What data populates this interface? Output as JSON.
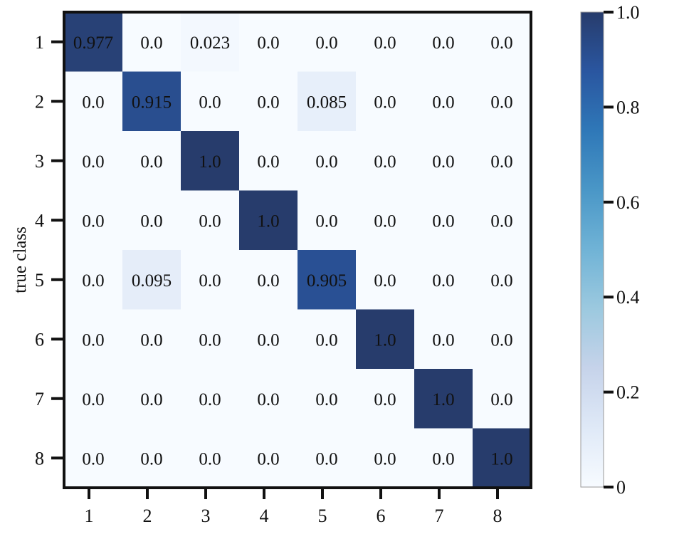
{
  "chart_data": {
    "type": "heatmap",
    "title": "",
    "xlabel": "",
    "ylabel": "true class",
    "x_categories": [
      "1",
      "2",
      "3",
      "4",
      "5",
      "6",
      "7",
      "8"
    ],
    "y_categories": [
      "1",
      "2",
      "3",
      "4",
      "5",
      "6",
      "7",
      "8"
    ],
    "values": [
      [
        0.977,
        0.0,
        0.023,
        0.0,
        0.0,
        0.0,
        0.0,
        0.0
      ],
      [
        0.0,
        0.915,
        0.0,
        0.0,
        0.085,
        0.0,
        0.0,
        0.0
      ],
      [
        0.0,
        0.0,
        1.0,
        0.0,
        0.0,
        0.0,
        0.0,
        0.0
      ],
      [
        0.0,
        0.0,
        0.0,
        1.0,
        0.0,
        0.0,
        0.0,
        0.0
      ],
      [
        0.0,
        0.095,
        0.0,
        0.0,
        0.905,
        0.0,
        0.0,
        0.0
      ],
      [
        0.0,
        0.0,
        0.0,
        0.0,
        0.0,
        1.0,
        0.0,
        0.0
      ],
      [
        0.0,
        0.0,
        0.0,
        0.0,
        0.0,
        0.0,
        1.0,
        0.0
      ],
      [
        0.0,
        0.0,
        0.0,
        0.0,
        0.0,
        0.0,
        0.0,
        1.0
      ]
    ],
    "cell_labels": [
      [
        "0.977",
        "0.0",
        "0.023",
        "0.0",
        "0.0",
        "0.0",
        "0.0",
        "0.0"
      ],
      [
        "0.0",
        "0.915",
        "0.0",
        "0.0",
        "0.085",
        "0.0",
        "0.0",
        "0.0"
      ],
      [
        "0.0",
        "0.0",
        "1.0",
        "0.0",
        "0.0",
        "0.0",
        "0.0",
        "0.0"
      ],
      [
        "0.0",
        "0.0",
        "0.0",
        "1.0",
        "0.0",
        "0.0",
        "0.0",
        "0.0"
      ],
      [
        "0.0",
        "0.095",
        "0.0",
        "0.0",
        "0.905",
        "0.0",
        "0.0",
        "0.0"
      ],
      [
        "0.0",
        "0.0",
        "0.0",
        "0.0",
        "0.0",
        "1.0",
        "0.0",
        "0.0"
      ],
      [
        "0.0",
        "0.0",
        "0.0",
        "0.0",
        "0.0",
        "0.0",
        "1.0",
        "0.0"
      ],
      [
        "0.0",
        "0.0",
        "0.0",
        "0.0",
        "0.0",
        "0.0",
        "0.0",
        "1.0"
      ]
    ],
    "colorbar": {
      "range": [
        0,
        1
      ],
      "ticks": [
        0,
        0.2,
        0.4,
        0.6,
        0.8,
        1.0
      ],
      "tick_labels": [
        "0",
        "0.2",
        "0.4",
        "0.6",
        "0.8",
        "1.0"
      ],
      "colormap": "Blues",
      "color_stops": [
        {
          "v": 0.0,
          "c": "#f7fbff"
        },
        {
          "v": 0.125,
          "c": "#dfe9f7"
        },
        {
          "v": 0.25,
          "c": "#c6d3ea"
        },
        {
          "v": 0.375,
          "c": "#9cc9df"
        },
        {
          "v": 0.5,
          "c": "#70b3d6"
        },
        {
          "v": 0.625,
          "c": "#4a97c7"
        },
        {
          "v": 0.75,
          "c": "#2f78b8"
        },
        {
          "v": 0.875,
          "c": "#2a56a0"
        },
        {
          "v": 1.0,
          "c": "#273c6c"
        }
      ]
    },
    "grid": false,
    "colors": {
      "frame": "#111111",
      "text": "#111111"
    }
  }
}
